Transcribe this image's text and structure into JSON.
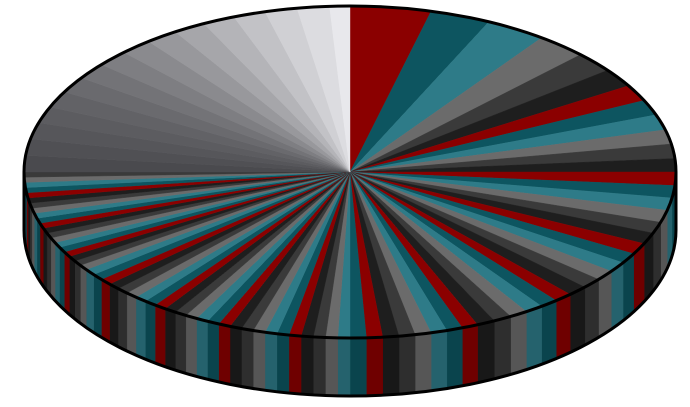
{
  "chart_data": {
    "type": "pie3d",
    "values": [
      4,
      3,
      3,
      2.5,
      2,
      1.8,
      1.6,
      1.5,
      1.5,
      1.4,
      1.4,
      1.3,
      1.3,
      1.2,
      1.2,
      1.2,
      1.1,
      1.1,
      1.1,
      1,
      1,
      1,
      1,
      1,
      0.9,
      0.9,
      0.9,
      0.9,
      0.9,
      0.9,
      0.8,
      0.8,
      0.8,
      0.8,
      0.8,
      0.8,
      0.8,
      0.8,
      0.6,
      0.6,
      0.6,
      0.6,
      0.6,
      0.6,
      0.6,
      0.6,
      0.6,
      0.6,
      0.6,
      0.6,
      0.6,
      0.6,
      0.6,
      0.6,
      0.6,
      0.6,
      0.6,
      0.6,
      0.6,
      0.6,
      0.6,
      0.6,
      0.6,
      0.5,
      0.5,
      0.5,
      0.5,
      0.5,
      0.5,
      0.5,
      0.5,
      0.5,
      0.5,
      0.5,
      0.5,
      0.5,
      0.5,
      0.5,
      0.5,
      0.5,
      0.5,
      0.5,
      0.5,
      1.6,
      1.6,
      1.6,
      1.6,
      1.6,
      1.6,
      1.6,
      1.6,
      1.6,
      1.6,
      1.6,
      1.6,
      1.6,
      1.6,
      1.6,
      1
    ],
    "colors": [
      "#8b0000",
      "#0d5560",
      "#2e7b88",
      "#6b6b6b",
      "#3a3a3a",
      "#1e1e1e",
      "#8b0000",
      "#0d5560",
      "#2e7b88",
      "#6b6b6b",
      "#3a3a3a",
      "#1e1e1e",
      "#8b0000",
      "#0d5560",
      "#2e7b88",
      "#6b6b6b",
      "#3a3a3a",
      "#1e1e1e",
      "#8b0000",
      "#0d5560",
      "#2e7b88",
      "#6b6b6b",
      "#3a3a3a",
      "#1e1e1e",
      "#8b0000",
      "#0d5560",
      "#2e7b88",
      "#6b6b6b",
      "#3a3a3a",
      "#1e1e1e",
      "#8b0000",
      "#0d5560",
      "#2e7b88",
      "#6b6b6b",
      "#3a3a3a",
      "#1e1e1e",
      "#8b0000",
      "#0d5560",
      "#2e7b88",
      "#6b6b6b",
      "#3a3a3a",
      "#1e1e1e",
      "#8b0000",
      "#0d5560",
      "#2e7b88",
      "#6b6b6b",
      "#3a3a3a",
      "#1e1e1e",
      "#8b0000",
      "#0d5560",
      "#2e7b88",
      "#6b6b6b",
      "#3a3a3a",
      "#1e1e1e",
      "#8b0000",
      "#0d5560",
      "#2e7b88",
      "#6b6b6b",
      "#3a3a3a",
      "#1e1e1e",
      "#8b0000",
      "#0d5560",
      "#2e7b88",
      "#6b6b6b",
      "#3a3a3a",
      "#1e1e1e",
      "#8b0000",
      "#0d5560",
      "#2e7b88",
      "#6b6b6b",
      "#3a3a3a",
      "#1e1e1e",
      "#8b0000",
      "#0d5560",
      "#2e7b88",
      "#6b6b6b",
      "#3a3a3a",
      "#1e1e1e",
      "#8b0000",
      "#0d5560",
      "#2e7b88",
      "#6b6b6b",
      "#3a3a3a",
      "#4a4a4e",
      "#505054",
      "#56565a",
      "#5c5c60",
      "#626266",
      "#6a6a6e",
      "#737377",
      "#7e7e82",
      "#8a8a8e",
      "#98989c",
      "#a6a6aa",
      "#b4b4b8",
      "#c2c2c6",
      "#d0d0d4",
      "#dcdce0",
      "#e8e8ec"
    ]
  }
}
